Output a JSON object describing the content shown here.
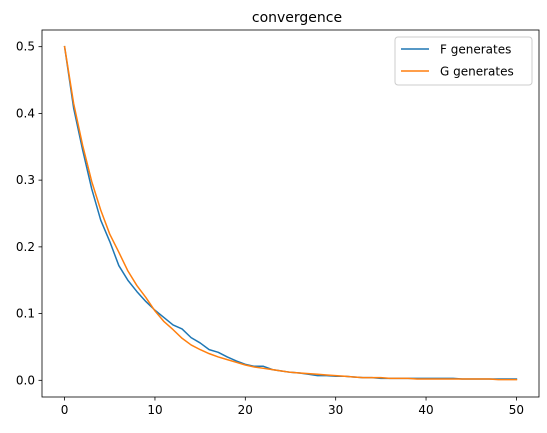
{
  "chart_data": {
    "type": "line",
    "title": "convergence",
    "xlabel": "",
    "ylabel": "",
    "xlim": [
      -2.5,
      52.5
    ],
    "ylim": [
      -0.025,
      0.525
    ],
    "xticks": [
      0,
      10,
      20,
      30,
      40,
      50
    ],
    "yticks": [
      0.0,
      0.1,
      0.2,
      0.3,
      0.4,
      0.5
    ],
    "ytick_labels": [
      "0.0",
      "0.1",
      "0.2",
      "0.3",
      "0.4",
      "0.5"
    ],
    "grid": false,
    "legend_position": "top-right",
    "x": [
      0,
      1,
      2,
      3,
      4,
      5,
      6,
      7,
      8,
      9,
      10,
      11,
      12,
      13,
      14,
      15,
      16,
      17,
      18,
      19,
      20,
      21,
      22,
      23,
      24,
      25,
      26,
      27,
      28,
      29,
      30,
      31,
      32,
      33,
      34,
      35,
      36,
      37,
      38,
      39,
      40,
      41,
      42,
      43,
      44,
      45,
      46,
      47,
      48,
      49,
      50
    ],
    "series": [
      {
        "name": "F generates",
        "color": "#1f77b4",
        "values": [
          0.5,
          0.408,
          0.345,
          0.287,
          0.24,
          0.208,
          0.172,
          0.15,
          0.133,
          0.118,
          0.105,
          0.094,
          0.083,
          0.077,
          0.064,
          0.056,
          0.046,
          0.042,
          0.035,
          0.029,
          0.024,
          0.021,
          0.021,
          0.016,
          0.014,
          0.012,
          0.011,
          0.009,
          0.007,
          0.007,
          0.006,
          0.006,
          0.005,
          0.004,
          0.004,
          0.003,
          0.003,
          0.003,
          0.003,
          0.003,
          0.003,
          0.003,
          0.003,
          0.003,
          0.002,
          0.002,
          0.002,
          0.002,
          0.002,
          0.002,
          0.002
        ]
      },
      {
        "name": "G generates",
        "color": "#ff7f0e",
        "values": [
          0.5,
          0.415,
          0.352,
          0.298,
          0.255,
          0.219,
          0.192,
          0.164,
          0.142,
          0.124,
          0.104,
          0.088,
          0.076,
          0.063,
          0.053,
          0.046,
          0.04,
          0.035,
          0.031,
          0.027,
          0.023,
          0.02,
          0.018,
          0.016,
          0.014,
          0.012,
          0.011,
          0.01,
          0.009,
          0.008,
          0.007,
          0.006,
          0.005,
          0.004,
          0.004,
          0.004,
          0.003,
          0.003,
          0.003,
          0.002,
          0.002,
          0.002,
          0.002,
          0.002,
          0.002,
          0.002,
          0.002,
          0.002,
          0.001,
          0.001,
          0.001
        ]
      }
    ]
  }
}
